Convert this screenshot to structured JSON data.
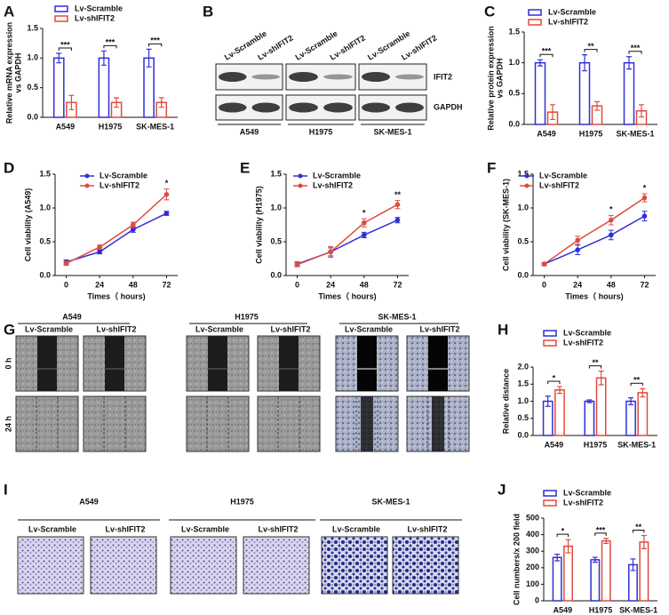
{
  "chart_data": [
    {
      "type": "bar",
      "ylabel": [
        "Relative mRNA expression",
        "vs GAPDH"
      ],
      "categories": [
        "A549",
        "H1975",
        "SK-MES-1"
      ],
      "series": [
        {
          "name": "Lv-Scramble",
          "color": "#2f2fd8",
          "values": [
            1,
            1,
            1
          ],
          "errors": [
            0.08,
            0.12,
            0.15
          ]
        },
        {
          "name": "Lv-shIFIT2",
          "color": "#e04a3f",
          "values": [
            0.25,
            0.25,
            0.25
          ],
          "errors": [
            0.12,
            0.08,
            0.08
          ]
        }
      ],
      "significance": [
        "***",
        "***",
        "***"
      ],
      "ylim": [
        0,
        1.5
      ],
      "yticks": [
        {
          "value": 0,
          "label": "0.0"
        },
        0.5,
        {
          "value": 1,
          "label": "1.0"
        },
        1.5
      ]
    },
    {
      "type": "bar",
      "ylabel": [
        "Relative protein expression",
        "vs GAPDH"
      ],
      "categories": [
        "A549",
        "H1975",
        "SK-MES-1"
      ],
      "series": [
        {
          "name": "Lv-Scramble",
          "color": "#2f2fd8",
          "values": [
            1,
            1,
            1
          ],
          "errors": [
            0.05,
            0.13,
            0.1
          ]
        },
        {
          "name": "Lv-shIFIT2",
          "color": "#e04a3f",
          "values": [
            0.2,
            0.3,
            0.22
          ],
          "errors": [
            0.12,
            0.07,
            0.1
          ]
        }
      ],
      "significance": [
        "***",
        "**",
        "***"
      ],
      "ylim": [
        0,
        1.5
      ],
      "yticks": [
        {
          "value": 0,
          "label": "0.0"
        },
        0.5,
        {
          "value": 1,
          "label": "1.0"
        },
        1.5
      ]
    },
    {
      "type": "line",
      "ylabel": [
        "Cell viability (A549)"
      ],
      "xlabel": "Times（ hours)",
      "x": [
        0,
        24,
        48,
        72
      ],
      "series": [
        {
          "name": "Lv-Scramble",
          "color": "#2f2fd8",
          "values": [
            0.2,
            0.35,
            0.68,
            0.92
          ],
          "errors": [
            0.03,
            0.03,
            0.04,
            0.03
          ]
        },
        {
          "name": "Lv-shIFIT2",
          "color": "#e04a3f",
          "values": [
            0.18,
            0.42,
            0.75,
            1.2
          ],
          "errors": [
            0.03,
            0.03,
            0.04,
            0.08
          ]
        }
      ],
      "significance": [
        null,
        null,
        null,
        "*"
      ],
      "xlim": [
        -8,
        80
      ],
      "xticks": [
        0,
        24,
        48,
        72
      ],
      "ylim": [
        0,
        1.5
      ],
      "yticks": [
        {
          "value": 0,
          "label": "0.0"
        },
        0.5,
        {
          "value": 1,
          "label": "1.0"
        },
        1.5
      ]
    },
    {
      "type": "line",
      "ylabel": [
        "Cell viability (H1975)"
      ],
      "xlabel": "Times（ hours)",
      "x": [
        0,
        24,
        48,
        72
      ],
      "series": [
        {
          "name": "Lv-Scramble",
          "color": "#2f2fd8",
          "values": [
            0.17,
            0.35,
            0.6,
            0.82
          ],
          "errors": [
            0.03,
            0.06,
            0.04,
            0.04
          ]
        },
        {
          "name": "Lv-shIFIT2",
          "color": "#e04a3f",
          "values": [
            0.16,
            0.35,
            0.78,
            1.05
          ],
          "errors": [
            0.03,
            0.08,
            0.06,
            0.06
          ]
        }
      ],
      "significance": [
        null,
        null,
        "*",
        "**"
      ],
      "xlim": [
        -8,
        80
      ],
      "xticks": [
        0,
        24,
        48,
        72
      ],
      "ylim": [
        0,
        1.5
      ],
      "yticks": [
        {
          "value": 0,
          "label": "0.0"
        },
        0.5,
        {
          "value": 1,
          "label": "1.0"
        },
        1.5
      ]
    },
    {
      "type": "line",
      "ylabel": [
        "Cell viability (SK-MES-1)"
      ],
      "xlabel": "Times（ hours)",
      "x": [
        0,
        24,
        48,
        72
      ],
      "series": [
        {
          "name": "Lv-Scramble",
          "color": "#2f2fd8",
          "values": [
            0.17,
            0.38,
            0.6,
            0.88
          ],
          "errors": [
            0.02,
            0.07,
            0.07,
            0.07
          ]
        },
        {
          "name": "Lv-shIFIT2",
          "color": "#e04a3f",
          "values": [
            0.17,
            0.52,
            0.82,
            1.15
          ],
          "errors": [
            0.02,
            0.06,
            0.07,
            0.06
          ]
        }
      ],
      "significance": [
        null,
        null,
        "*",
        "*"
      ],
      "xlim": [
        -8,
        80
      ],
      "xticks": [
        0,
        24,
        48,
        72
      ],
      "ylim": [
        0,
        1.5
      ],
      "yticks": [
        {
          "value": 0,
          "label": "0.0"
        },
        0.5,
        {
          "value": 1,
          "label": "1.0"
        },
        1.5
      ]
    },
    {
      "type": "bar",
      "ylabel": [
        "Relative distance"
      ],
      "categories": [
        "A549",
        "H1975",
        "SK-MES-1"
      ],
      "series": [
        {
          "name": "Lv-Scramble",
          "color": "#2f2fd8",
          "values": [
            1,
            1,
            1
          ],
          "errors": [
            0.15,
            0.04,
            0.1
          ]
        },
        {
          "name": "Lv-shIFIT2",
          "color": "#e04a3f",
          "values": [
            1.33,
            1.68,
            1.25
          ],
          "errors": [
            0.1,
            0.2,
            0.12
          ]
        }
      ],
      "significance": [
        "*",
        "**",
        "**"
      ],
      "ylim": [
        0,
        2
      ],
      "yticks": [
        {
          "value": 0,
          "label": "0.0"
        },
        0.5,
        {
          "value": 1,
          "label": "1.0"
        },
        1.5,
        {
          "value": 2,
          "label": "2.0"
        }
      ]
    },
    {
      "type": "bar",
      "ylabel": [
        "Cell numbers/x 200 field"
      ],
      "categories": [
        "A549",
        "H1975",
        "SK-MES-1"
      ],
      "series": [
        {
          "name": "Lv-Scramble",
          "color": "#2f2fd8",
          "values": [
            262,
            248,
            218
          ],
          "errors": [
            20,
            15,
            35
          ]
        },
        {
          "name": "Lv-shIFIT2",
          "color": "#e04a3f",
          "values": [
            330,
            362,
            355
          ],
          "errors": [
            40,
            15,
            40
          ]
        }
      ],
      "significance": [
        "*",
        "***",
        "**"
      ],
      "ylim": [
        0,
        500
      ],
      "yticks": [
        0,
        100,
        200,
        300,
        400,
        500
      ]
    }
  ],
  "figure": {
    "panel_letters": [
      "A",
      "B",
      "C",
      "D",
      "E",
      "F",
      "G",
      "H",
      "I",
      "J"
    ],
    "blot": {
      "lanes": [
        "Lv-Scramble",
        "Lv-shIFIT2",
        "Lv-Scramble",
        "Lv-shIFIT2",
        "Lv-Scramble",
        "Lv-shIFIT2"
      ],
      "rows": [
        "IFIT2",
        "GAPDH"
      ],
      "groups": [
        "A549",
        "H1975",
        "SK-MES-1"
      ]
    },
    "wound": {
      "groups": [
        "A549",
        "H1975",
        "SK-MES-1"
      ],
      "lanes": [
        "Lv-Scramble",
        "Lv-shIFIT2",
        "Lv-Scramble",
        "Lv-shIFIT2",
        "Lv-Scramble",
        "Lv-shIFIT2"
      ],
      "rows": [
        "0 h",
        "24 h"
      ]
    },
    "invasion": {
      "groups": [
        "A549",
        "H1975",
        "SK-MES-1"
      ],
      "lanes": [
        "Lv-Scramble",
        "Lv-shIFIT2",
        "Lv-Scramble",
        "Lv-shIFIT2",
        "Lv-Scramble",
        "Lv-shIFIT2"
      ]
    }
  }
}
